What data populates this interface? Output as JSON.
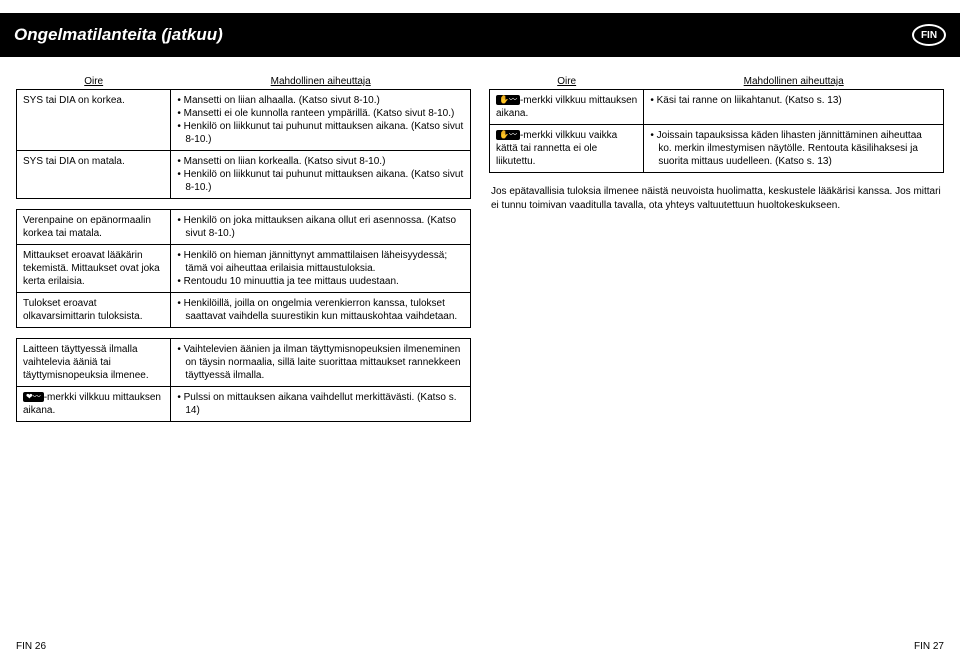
{
  "header": {
    "title": "Ongelmatilanteita (jatkuu)",
    "badge": "FIN"
  },
  "left": {
    "th_oire": "Oire",
    "th_cause": "Mahdollinen aiheuttaja",
    "r1_oire": "SYS tai DIA on korkea.",
    "r1_b1": "Mansetti on liian alhaalla. (Katso sivut 8-10.)",
    "r1_b2": "Mansetti ei ole kunnolla ranteen ympärillä. (Katso sivut 8-10.)",
    "r1_b3": "Henkilö on liikkunut tai puhunut mittauksen aikana. (Katso sivut 8-10.)",
    "r2_oire": "SYS tai DIA on matala.",
    "r2_b1": "Mansetti on liian korkealla. (Katso sivut 8-10.)",
    "r2_b2": "Henkilö on liikkunut tai puhunut mittauksen aikana. (Katso sivut 8-10.)",
    "r3_oire": "Verenpaine on epänormaalin korkea tai matala.",
    "r3_b1": "Henkilö on joka mittauksen aikana ollut eri asennossa. (Katso sivut 8-10.)",
    "r4_oire": "Mittaukset eroavat lääkärin tekemistä. Mittaukset ovat joka kerta erilaisia.",
    "r4_b1": "Henkilö on hieman jännittynyt ammattilaisen läheisyydessä; tämä voi aiheuttaa erilaisia mittaustuloksia.",
    "r4_b2": "Rentoudu 10 minuuttia ja tee mittaus uudestaan.",
    "r5_oire": "Tulokset eroavat olkavarsimittarin tuloksista.",
    "r5_b1": "Henkilöillä, joilla on ongelmia verenkierron kanssa, tulokset saattavat vaihdella suurestikin kun mittauskohtaa vaihdetaan.",
    "r6_oire": "Laitteen täyttyessä ilmalla vaihtelevia ääniä tai täyttymisnopeuksia ilmenee.",
    "r6_b1": "Vaihtelevien äänien ja ilman täyttymisnopeuksien ilmeneminen on täysin normaalia, sillä laite suorittaa mittaukset rannekkeen täyttyessä ilmalla.",
    "r7_icon": "❤︎〰",
    "r7_oire_rest": "-merkki vilkkuu mittauksen aikana.",
    "r7_b1": "Pulssi on mittauksen aikana vaihdellut merkittävästi. (Katso s. 14)"
  },
  "right": {
    "th_oire": "Oire",
    "th_cause": "Mahdollinen aiheuttaja",
    "r1_icon": "✋〰",
    "r1_oire_rest": "-merkki vilkkuu mittauksen aikana.",
    "r1_b1": "Käsi tai ranne on liikahtanut. (Katso s. 13)",
    "r2_icon": "✋〰",
    "r2_oire_rest": "-merkki vilkkuu vaikka kättä tai rannetta ei ole liikutettu.",
    "r2_b1": "Joissain tapauksissa käden lihasten jännittäminen aiheuttaa ko. merkin ilmestymisen näytölle. Rentouta käsilihaksesi ja suorita mittaus uudelleen. (Katso s. 13)",
    "advice": "Jos epätavallisia tuloksia ilmenee näistä neuvoista huolimatta, keskustele lääkärisi kanssa. Jos mittari ei tunnu toimivan vaaditulla tavalla, ota yhteys valtuutettuun huoltokeskukseen."
  },
  "footer": {
    "left": "FIN 26",
    "right": "FIN 27"
  }
}
